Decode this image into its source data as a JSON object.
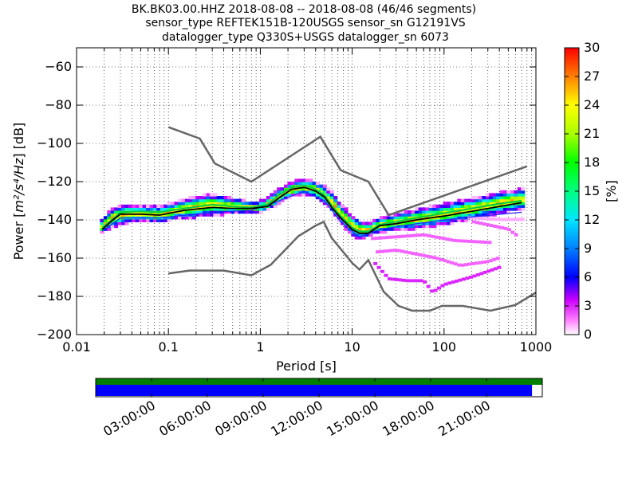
{
  "title_lines": [
    "BK.BK03.00.HHZ   2018-08-08 -- 2018-08-08  (46/46 segments)",
    "sensor_type REFTEK151B-120USGS sensor_sn G12191VS",
    "datalogger_type Q330S+USGS datalogger_sn 6073"
  ],
  "chart_data": {
    "type": "heatmap",
    "title": "BK.BK03.00.HHZ   2018-08-08 -- 2018-08-08  (46/46 segments)",
    "xlabel": "Period [s]",
    "ylabel": "Power [$m^2/s^4/Hz$] [dB]",
    "ylabel_parts": {
      "before": "Power [",
      "math": "m²/s⁴/Hz",
      "after": "] [dB]"
    },
    "x_scale": "log",
    "xlim": [
      0.01,
      1000
    ],
    "ylim": [
      -200,
      -50
    ],
    "x_ticks": [
      {
        "value": 0.01,
        "label": "0.01"
      },
      {
        "value": 0.1,
        "label": "0.1"
      },
      {
        "value": 1,
        "label": "1"
      },
      {
        "value": 10,
        "label": "10"
      },
      {
        "value": 100,
        "label": "100"
      },
      {
        "value": 1000,
        "label": "1000"
      }
    ],
    "y_ticks": [
      {
        "value": -200,
        "label": "−200"
      },
      {
        "value": -180,
        "label": "−180"
      },
      {
        "value": -160,
        "label": "−160"
      },
      {
        "value": -140,
        "label": "−140"
      },
      {
        "value": -120,
        "label": "−120"
      },
      {
        "value": -100,
        "label": "−100"
      },
      {
        "value": -80,
        "label": "−80"
      },
      {
        "value": -60,
        "label": "−60"
      }
    ],
    "grid": true,
    "colorbar": {
      "label": "[%]",
      "range": [
        0,
        30
      ],
      "ticks": [
        {
          "value": 0,
          "label": "0"
        },
        {
          "value": 3,
          "label": "3"
        },
        {
          "value": 6,
          "label": "6"
        },
        {
          "value": 9,
          "label": "9"
        },
        {
          "value": 12,
          "label": "12"
        },
        {
          "value": 15,
          "label": "15"
        },
        {
          "value": 18,
          "label": "18"
        },
        {
          "value": 21,
          "label": "21"
        },
        {
          "value": 24,
          "label": "24"
        },
        {
          "value": 27,
          "label": "27"
        },
        {
          "value": 30,
          "label": "30"
        }
      ]
    },
    "high_noise_model": {
      "name": "NHNM",
      "points": [
        [
          0.1,
          -91.5
        ],
        [
          0.22,
          -97.5
        ],
        [
          0.32,
          -110.5
        ],
        [
          0.8,
          -120
        ],
        [
          4.5,
          -96.5
        ],
        [
          7.5,
          -114
        ],
        [
          15,
          -120
        ],
        [
          25,
          -137.5
        ],
        [
          800,
          -112
        ]
      ]
    },
    "low_noise_model": {
      "name": "NLNM",
      "points": [
        [
          0.1,
          -168
        ],
        [
          0.17,
          -166.5
        ],
        [
          0.4,
          -166.5
        ],
        [
          0.8,
          -169
        ],
        [
          1.3,
          -163.5
        ],
        [
          2.6,
          -148.5
        ],
        [
          4,
          -143
        ],
        [
          4.9,
          -141
        ],
        [
          6,
          -149.5
        ],
        [
          10,
          -162.5
        ],
        [
          12,
          -166
        ],
        [
          15,
          -161
        ],
        [
          22,
          -177.5
        ],
        [
          32,
          -185
        ],
        [
          45,
          -187.5
        ],
        [
          70,
          -187.5
        ],
        [
          95,
          -185
        ],
        [
          160,
          -185
        ],
        [
          320,
          -187.5
        ],
        [
          600,
          -184.5
        ],
        [
          1000,
          -178
        ]
      ]
    },
    "median_line": {
      "name": "median",
      "points": [
        [
          0.019,
          -145
        ],
        [
          0.025,
          -140
        ],
        [
          0.03,
          -137
        ],
        [
          0.05,
          -137
        ],
        [
          0.08,
          -137.5
        ],
        [
          0.15,
          -135
        ],
        [
          0.3,
          -133.5
        ],
        [
          0.5,
          -134
        ],
        [
          0.8,
          -134
        ],
        [
          1.2,
          -133
        ],
        [
          1.6,
          -128.5
        ],
        [
          2.2,
          -124
        ],
        [
          3,
          -123
        ],
        [
          4,
          -125
        ],
        [
          5,
          -128
        ],
        [
          6,
          -133.5
        ],
        [
          7.5,
          -139
        ],
        [
          10,
          -145
        ],
        [
          12,
          -147
        ],
        [
          15,
          -147
        ],
        [
          20,
          -143
        ],
        [
          30,
          -142
        ],
        [
          50,
          -140
        ],
        [
          100,
          -138
        ],
        [
          200,
          -135.5
        ],
        [
          400,
          -133
        ],
        [
          700,
          -131
        ]
      ]
    },
    "mode_line": {
      "name": "mode",
      "points": [
        [
          0.019,
          -144
        ],
        [
          0.025,
          -139.5
        ],
        [
          0.03,
          -136
        ],
        [
          0.05,
          -135.5
        ],
        [
          0.08,
          -136
        ],
        [
          0.15,
          -134
        ],
        [
          0.3,
          -132
        ],
        [
          0.5,
          -133
        ],
        [
          0.8,
          -133.5
        ],
        [
          1.2,
          -132
        ],
        [
          1.6,
          -127
        ],
        [
          2.2,
          -123
        ],
        [
          3,
          -122
        ],
        [
          4,
          -124
        ],
        [
          5,
          -127
        ],
        [
          6,
          -132.5
        ],
        [
          7.5,
          -138
        ],
        [
          10,
          -144
        ],
        [
          12,
          -146
        ],
        [
          15,
          -146
        ],
        [
          20,
          -142.5
        ],
        [
          30,
          -141
        ],
        [
          50,
          -139
        ],
        [
          100,
          -136.5
        ],
        [
          200,
          -134
        ],
        [
          400,
          -131.5
        ],
        [
          700,
          -130
        ]
      ]
    },
    "lower_band_line": {
      "name": "low percentile",
      "points": [
        [
          0.019,
          -146
        ],
        [
          0.03,
          -139
        ],
        [
          0.08,
          -139
        ],
        [
          0.3,
          -136
        ],
        [
          0.8,
          -135
        ],
        [
          1.6,
          -130
        ],
        [
          3,
          -125
        ],
        [
          5,
          -130
        ],
        [
          7.5,
          -141
        ],
        [
          12,
          -149
        ],
        [
          20,
          -145
        ],
        [
          50,
          -142
        ],
        [
          150,
          -139
        ],
        [
          700,
          -136
        ]
      ]
    },
    "psd_cluster": {
      "band": [
        [
          0.018,
          -147,
          -141
        ],
        [
          0.025,
          -143,
          -134
        ],
        [
          0.035,
          -141,
          -132
        ],
        [
          0.05,
          -140,
          -133
        ],
        [
          0.08,
          -141,
          -133
        ],
        [
          0.12,
          -139,
          -131
        ],
        [
          0.2,
          -138,
          -128
        ],
        [
          0.3,
          -137,
          -127
        ],
        [
          0.5,
          -136,
          -129
        ],
        [
          0.8,
          -136,
          -131
        ],
        [
          1.1,
          -135,
          -130
        ],
        [
          1.5,
          -132,
          -125
        ],
        [
          2,
          -128,
          -121
        ],
        [
          2.8,
          -126,
          -119
        ],
        [
          3.8,
          -127,
          -120
        ],
        [
          4.8,
          -130,
          -122
        ],
        [
          6,
          -135,
          -126
        ],
        [
          7.5,
          -141,
          -132
        ],
        [
          10,
          -148,
          -138
        ],
        [
          12,
          -149,
          -141
        ],
        [
          15,
          -148,
          -142
        ],
        [
          20,
          -146,
          -139
        ],
        [
          30,
          -145,
          -137
        ],
        [
          50,
          -144,
          -135
        ],
        [
          100,
          -142,
          -132
        ],
        [
          200,
          -139,
          -129
        ],
        [
          400,
          -136,
          -126
        ],
        [
          700,
          -134,
          -124
        ]
      ]
    },
    "outlier_segments": [
      {
        "points": [
          [
            16,
            -150
          ],
          [
            60,
            -148
          ],
          [
            130,
            -151
          ],
          [
            320,
            -152
          ]
        ],
        "pct": 2
      },
      {
        "points": [
          [
            18,
            -157
          ],
          [
            30,
            -156
          ],
          [
            80,
            -160
          ],
          [
            150,
            -164
          ],
          [
            300,
            -162
          ],
          [
            400,
            -160
          ]
        ],
        "pct": 2
      },
      {
        "points": [
          [
            17,
            -162
          ],
          [
            25,
            -171
          ],
          [
            40,
            -172
          ],
          [
            60,
            -172
          ],
          [
            75,
            -178
          ],
          [
            100,
            -174
          ],
          [
            200,
            -170
          ],
          [
            400,
            -165
          ]
        ],
        "pct": 3
      },
      {
        "points": [
          [
            200,
            -141
          ],
          [
            500,
            -145
          ],
          [
            600,
            -148
          ]
        ],
        "pct": 2
      },
      {
        "points": [
          [
            180,
            -139
          ],
          [
            400,
            -140
          ],
          [
            700,
            -140
          ]
        ],
        "pct": 1
      }
    ],
    "timeline": {
      "tick_labels": [
        "03:00:00",
        "06:00:00",
        "09:00:00",
        "12:00:00",
        "15:00:00",
        "18:00:00",
        "21:00:00"
      ],
      "coverage_fraction": 0.977,
      "data_color": "#0000ff",
      "segment_color": "#008000"
    }
  }
}
